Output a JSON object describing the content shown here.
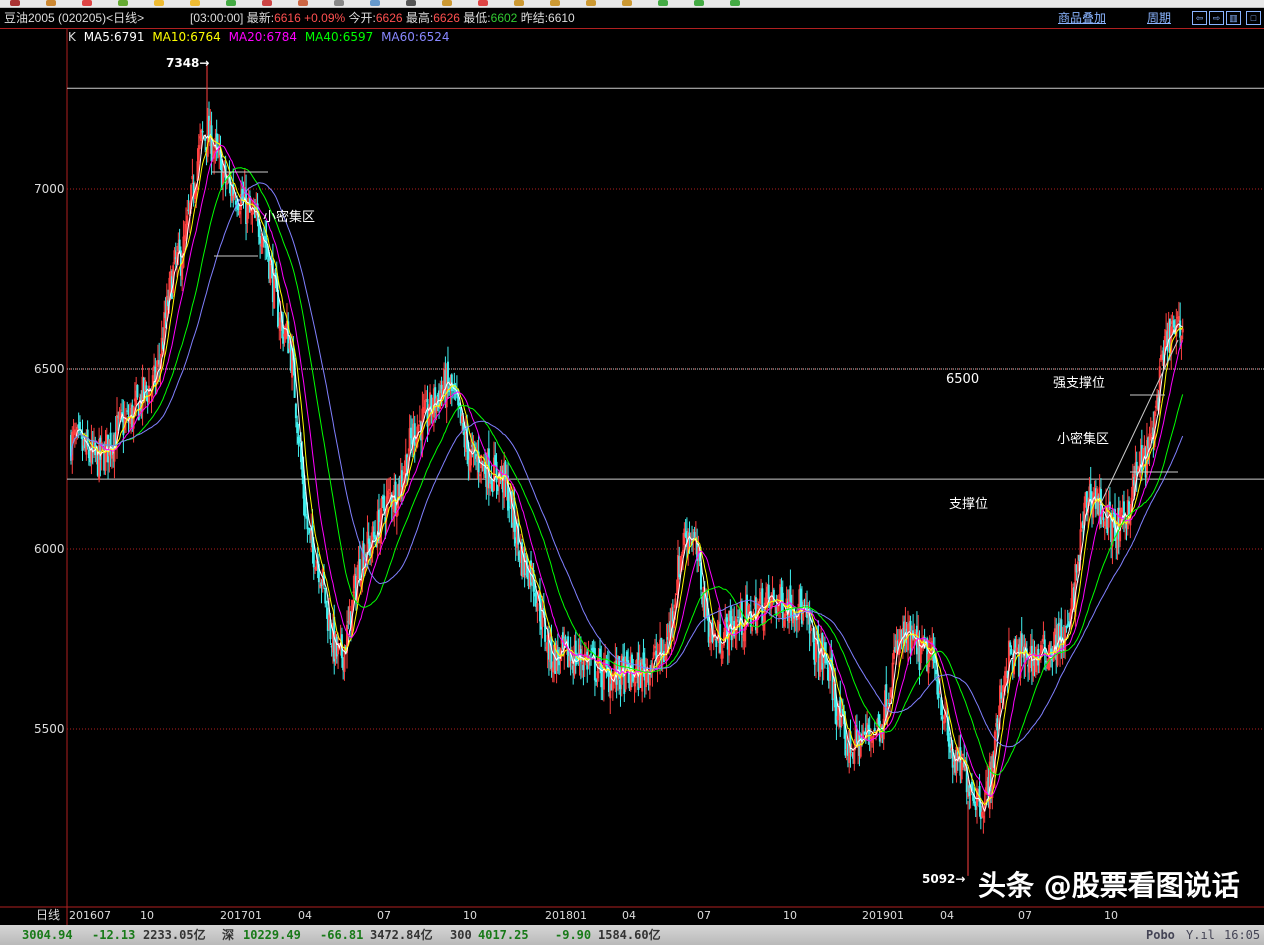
{
  "header": {
    "title": "豆油2005 (020205)<日线>",
    "time": "[03:00:00]",
    "latest_label": "最新:",
    "latest": "6616",
    "change": "+0.09%",
    "open_label": "今开:",
    "open": "6626",
    "high_label": "最高:",
    "high": "6626",
    "low_label": "最低:",
    "low": "6602",
    "prev_label": "昨结:",
    "prev": "6610",
    "overlay_link": "商品叠加",
    "period_link": "周期",
    "btn_left": "⇦",
    "btn_right": "⇨",
    "btn_panel": "▥",
    "btn_max": "□"
  },
  "legend": {
    "k": "K",
    "ma5": "MA5:6791",
    "ma10": "MA10:6764",
    "ma20": "MA20:6784",
    "ma40": "MA40:6597",
    "ma60": "MA60:6524"
  },
  "colors": {
    "up": "#ff4040",
    "down": "#40f0f0",
    "ma5": "#ffffff",
    "ma10": "#ffff00",
    "ma20": "#ff00ff",
    "ma40": "#00ff00",
    "ma60": "#8080ff",
    "grid": "#b02020"
  },
  "annotations": {
    "high": "7348→",
    "low": "5092→",
    "dense1": "小密集区",
    "dense2": "小密集区",
    "level": "6500",
    "strong": "强支撑位",
    "support": "支撑位",
    "watermark": "头条 @股票看图说话"
  },
  "chart_data": {
    "type": "candlestick",
    "period_label": "日线",
    "y_ticks": [
      7000,
      6500,
      6000,
      5500
    ],
    "x_ticks": [
      "201607",
      "10",
      "201701",
      "04",
      "07",
      "10",
      "201801",
      "04",
      "07",
      "10",
      "201901",
      "04",
      "07",
      "10"
    ],
    "monthly_close": [
      6300,
      6250,
      6350,
      6450,
      6800,
      7150,
      7000,
      6900,
      6600,
      6000,
      5700,
      6000,
      6150,
      6350,
      6450,
      6250,
      6200,
      5950,
      5700,
      5700,
      5650,
      5650,
      5700,
      6050,
      5750,
      5800,
      5850,
      5850,
      5700,
      5450,
      5500,
      5750,
      5700,
      5400,
      5300,
      5700,
      5700,
      5750,
      6150,
      6050,
      6250,
      6600
    ],
    "max": 7348,
    "min": 5092,
    "hlines": [
      7280,
      6500,
      6194
    ]
  },
  "status": {
    "sh_val": "3004.94",
    "sh_chg": "-12.13",
    "sh_amt": "2233.05亿",
    "sz_label": "深",
    "sz_val": "10229.49",
    "sz_chg": "-66.81",
    "sz_amt": "3472.84亿",
    "hs_label": "300",
    "hs_val": "4017.25",
    "hs_chg": "-9.90",
    "hs_amt": "1584.60亿",
    "brand": "Pobo",
    "signal": "Y.ıl",
    "time": "16:05"
  }
}
